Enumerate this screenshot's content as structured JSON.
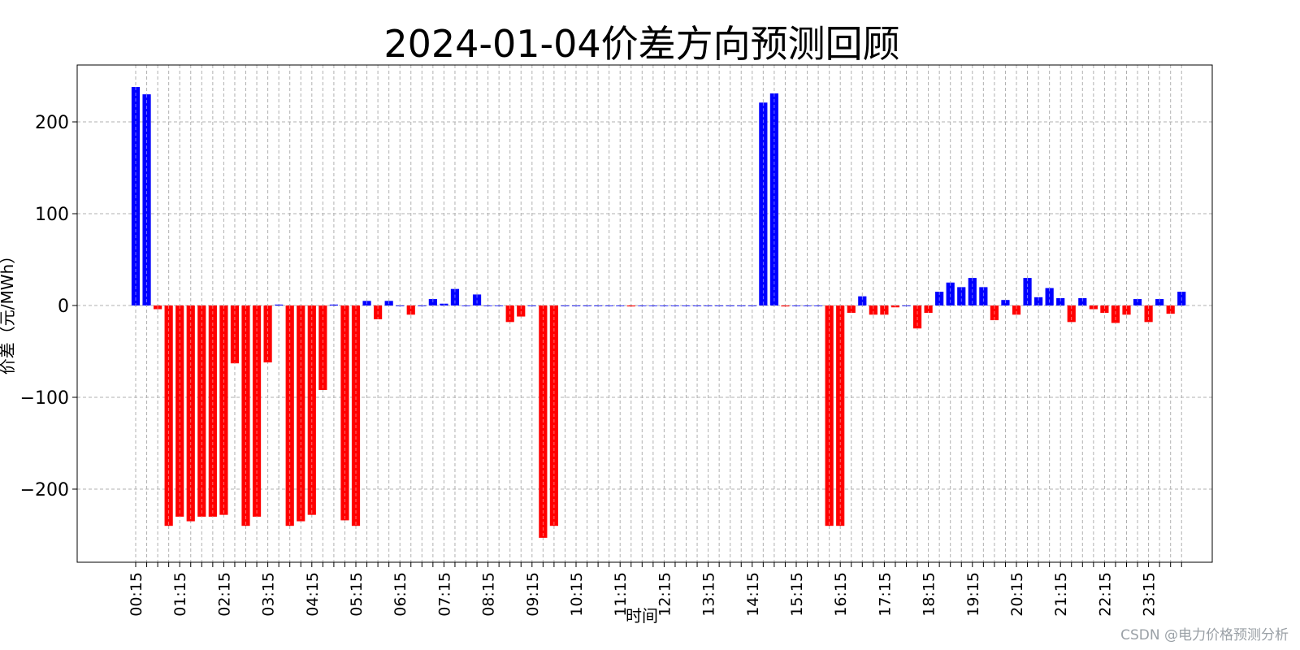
{
  "chart_data": {
    "type": "bar",
    "title": "2024-01-04价差方向预测回顾",
    "xlabel": "时间",
    "ylabel": "价差（元/MWh）",
    "ylim": [
      -280,
      262
    ],
    "yticks": [
      200,
      100,
      0,
      -100,
      -200
    ],
    "ytick_labels": [
      "200",
      "100",
      "0",
      "−100",
      "−200"
    ],
    "grid": true,
    "x_tick_labels": [
      "00:15",
      "01:15",
      "02:15",
      "03:15",
      "04:15",
      "05:15",
      "06:15",
      "07:15",
      "08:15",
      "09:15",
      "10:15",
      "11:15",
      "12:15",
      "13:15",
      "14:15",
      "15:15",
      "16:15",
      "17:15",
      "18:15",
      "19:15",
      "20:15",
      "21:15",
      "22:15",
      "23:15"
    ],
    "positive_color": "#0000ff",
    "negative_color": "#ff0000",
    "values": [
      238,
      230,
      -4,
      -240,
      -230,
      -235,
      -230,
      -230,
      -228,
      -63,
      -240,
      -230,
      -62,
      1,
      -240,
      -235,
      -228,
      -92,
      1,
      -234,
      -240,
      5,
      -15,
      5,
      0,
      -10,
      0,
      7,
      2,
      18,
      0,
      12,
      0,
      0,
      -18,
      -12,
      0,
      -253,
      -240,
      0,
      0,
      0,
      0,
      0,
      0,
      -1,
      0,
      0,
      0,
      0,
      0,
      0,
      0,
      0,
      0,
      0,
      0,
      221,
      231,
      -1,
      0,
      0,
      0,
      -240,
      -240,
      -8,
      10,
      -10,
      -10,
      -2,
      0,
      -25,
      -8,
      15,
      25,
      20,
      30,
      20,
      -16,
      6,
      -10,
      30,
      9,
      19,
      8,
      -18,
      8,
      -4,
      -8,
      -19,
      -10,
      7,
      -18,
      7,
      -9,
      15
    ]
  },
  "watermark": "CSDN @电力价格预测分析"
}
